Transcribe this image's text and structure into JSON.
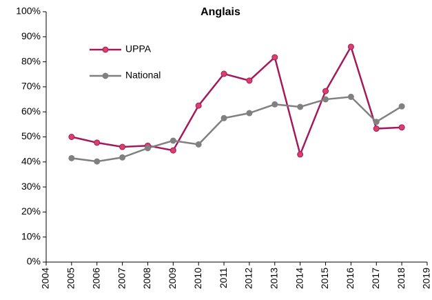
{
  "chart_data": {
    "type": "line",
    "title": "Anglais",
    "x": [
      2005,
      2006,
      2007,
      2008,
      2009,
      2010,
      2011,
      2012,
      2013,
      2014,
      2015,
      2016,
      2017,
      2018
    ],
    "series": [
      {
        "name": "UPPA",
        "color": "#a3195b",
        "marker_color": "#d9416b",
        "values": [
          50,
          47.7,
          46,
          46.5,
          44.6,
          62.5,
          75.2,
          72.5,
          81.8,
          43,
          68.3,
          86,
          53.3,
          53.8
        ]
      },
      {
        "name": "National",
        "color": "#808080",
        "marker_color": "#808080",
        "values": [
          41.5,
          40.2,
          41.8,
          45.5,
          48.5,
          47,
          57.5,
          59.5,
          63,
          62,
          65,
          66,
          56,
          62.2
        ]
      }
    ],
    "xlim": [
      2004,
      2019
    ],
    "xticks": [
      2004,
      2005,
      2006,
      2007,
      2008,
      2009,
      2010,
      2011,
      2012,
      2013,
      2014,
      2015,
      2016,
      2017,
      2018,
      2019
    ],
    "ylim": [
      0,
      100
    ],
    "yticks": [
      {
        "value": 0,
        "label": "0%"
      },
      {
        "value": 10,
        "label": "10%"
      },
      {
        "value": 20,
        "label": "20%"
      },
      {
        "value": 30,
        "label": "30%"
      },
      {
        "value": 40,
        "label": "40%"
      },
      {
        "value": 50,
        "label": "50%"
      },
      {
        "value": 60,
        "label": "60%"
      },
      {
        "value": 70,
        "label": "70%"
      },
      {
        "value": 80,
        "label": "80%"
      },
      {
        "value": 90,
        "label": "90%"
      },
      {
        "value": 100,
        "label": "100%"
      }
    ],
    "grid": false,
    "legend": "upper left"
  }
}
